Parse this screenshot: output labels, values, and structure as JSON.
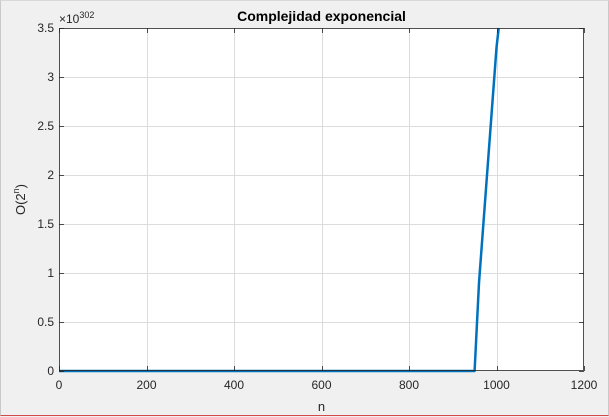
{
  "colors": {
    "figure_background": "#f0f0f0",
    "axes_background": "#ffffff",
    "axes_border": "#262626",
    "grid": "#dcdcdc",
    "series_line": "#0072bd",
    "window_bottom_edge": "#d24a4a"
  },
  "chart_data": {
    "type": "line",
    "title": "Complejidad exponencial",
    "xlabel": "n",
    "ylabel_base": "O(2",
    "ylabel_exponent": "n",
    "ylabel_close": ")",
    "y_multiplier_base": "×10",
    "y_multiplier_exponent": "302",
    "xlim": [
      0,
      1200
    ],
    "ylim": [
      0,
      3.5
    ],
    "grid": true,
    "x_ticks": [
      0,
      200,
      400,
      600,
      800,
      1000,
      1200
    ],
    "x_tick_labels": [
      "0",
      "200",
      "400",
      "600",
      "800",
      "1000",
      "1200"
    ],
    "y_ticks": [
      0,
      0.5,
      1,
      1.5,
      2,
      2.5,
      3,
      3.5
    ],
    "y_tick_labels": [
      "0",
      "0.5",
      "1",
      "1.5",
      "2",
      "2.5",
      "3",
      "3.5"
    ],
    "series": [
      {
        "x": [
          0,
          200,
          400,
          600,
          800,
          950,
          960,
          1000,
          1005
        ],
        "y": [
          0,
          0,
          0,
          0,
          0,
          0,
          0.9,
          3.3,
          3.5
        ]
      }
    ]
  }
}
